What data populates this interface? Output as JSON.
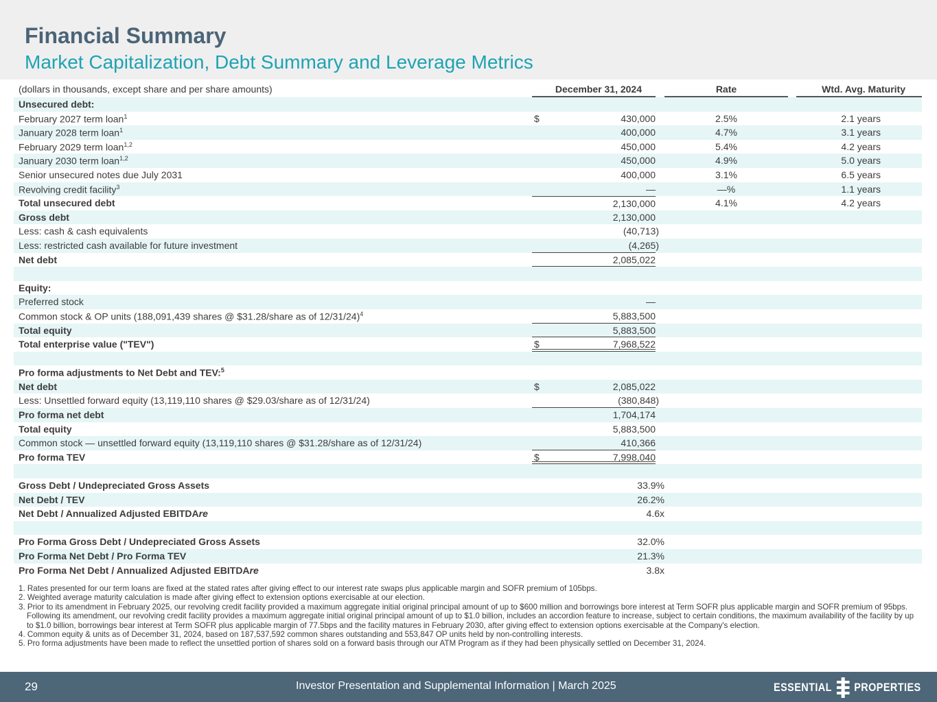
{
  "header": {
    "title": "Financial Summary",
    "subtitle": "Market Capitalization, Debt Summary and Leverage Metrics"
  },
  "table": {
    "columns": [
      "(dollars in thousands, except share and per share amounts)",
      "December 31, 2024",
      "Rate",
      "Wtd. Avg. Maturity"
    ],
    "rows": [
      {
        "label": "Unsecured debt:",
        "bold": true
      },
      {
        "label": "February 2027 term loan",
        "sup": "1",
        "dollar": "$",
        "value": "430,000",
        "rate": "2.5%",
        "maturity": "2.1 years"
      },
      {
        "label": "January 2028 term loan",
        "sup": "1",
        "value": "400,000",
        "rate": "4.7%",
        "maturity": "3.1 years"
      },
      {
        "label": "February 2029 term loan",
        "sup": "1,2",
        "value": "450,000",
        "rate": "5.4%",
        "maturity": "4.2 years"
      },
      {
        "label": "January 2030 term loan",
        "sup": "1,2",
        "value": "450,000",
        "rate": "4.9%",
        "maturity": "5.0 years"
      },
      {
        "label": "Senior unsecured notes due July 2031",
        "value": "400,000",
        "rate": "3.1%",
        "maturity": "6.5 years"
      },
      {
        "label": "Revolving credit facility",
        "sup": "3",
        "value": "—",
        "rate": "—%",
        "maturity": "1.1 years"
      },
      {
        "label": "Total unsecured debt",
        "bold": true,
        "value": "2,130,000",
        "rate": "4.1%",
        "maturity": "4.2 years",
        "line": "tt"
      },
      {
        "label": "Gross debt",
        "bold": true,
        "value": "2,130,000"
      },
      {
        "label": "Less: cash & cash equivalents",
        "value": "(40,713)"
      },
      {
        "label": "Less: restricted cash available for future investment",
        "value": "(4,265)",
        "line": "ul"
      },
      {
        "label": "Net debt",
        "bold": true,
        "value": "2,085,022",
        "line": "ul"
      },
      {
        "label": ""
      },
      {
        "label": "Equity:",
        "bold": true
      },
      {
        "label": "Preferred stock",
        "value": "—"
      },
      {
        "label": "Common stock & OP units (188,091,439 shares @ $31.28/share as of 12/31/24)",
        "sup": "4",
        "value": "5,883,500",
        "line": "ul"
      },
      {
        "label": "Total equity",
        "bold": true,
        "value": "5,883,500",
        "line": "ul"
      },
      {
        "label": "Total enterprise value (\"TEV\")",
        "bold": true,
        "dollar": "$",
        "value": "7,968,522",
        "line": "dbl"
      },
      {
        "label": ""
      },
      {
        "label": "Pro forma adjustments to Net Debt and TEV:",
        "sup": "5",
        "bold": true
      },
      {
        "label": "Net debt",
        "bold": true,
        "dollar": "$",
        "value": "2,085,022"
      },
      {
        "label": "Less: Unsettled forward equity (13,119,110 shares @ $29.03/share as of 12/31/24)",
        "value": "(380,848)",
        "line": "ul"
      },
      {
        "label": "Pro forma net debt",
        "bold": true,
        "value": "1,704,174"
      },
      {
        "label": "Total equity",
        "bold": true,
        "value": "5,883,500"
      },
      {
        "label": "Common stock — unsettled forward equity (13,119,110 shares @ $31.28/share as of 12/31/24)",
        "value": "410,366",
        "line": "ul"
      },
      {
        "label": "Pro forma TEV",
        "bold": true,
        "dollar": "$",
        "value": "7,998,040",
        "line": "dbl"
      },
      {
        "label": ""
      },
      {
        "label": "Gross Debt / Undepreciated Gross Assets",
        "bold": true,
        "ratio": "33.9%"
      },
      {
        "label": "Net Debt / TEV",
        "bold": true,
        "ratio": "26.2%"
      },
      {
        "label": "Net Debt / Annualized Adjusted EBITDAre",
        "bold": true,
        "ratio": "4.6x"
      },
      {
        "label": ""
      },
      {
        "label": "Pro Forma Gross Debt / Undepreciated Gross Assets",
        "bold": true,
        "ratio": "32.0%"
      },
      {
        "label": "Pro Forma Net Debt / Pro Forma TEV",
        "bold": true,
        "ratio": "21.3%"
      },
      {
        "label": "Pro Forma Net Debt / Annualized Adjusted EBITDAre",
        "bold": true,
        "ratio": "3.8x"
      }
    ]
  },
  "footnotes": [
    "1. Rates presented for our term loans are fixed at the stated rates after giving effect to our interest rate swaps plus applicable margin and SOFR premium of 105bps.",
    "2. Weighted average maturity calculation is made after giving effect to extension options exercisable at our election.",
    "3. Prior to its amendment in February 2025, our revolving credit facility provided a maximum aggregate initial original principal amount of up to $600 million and borrowings bore interest at Term SOFR plus applicable margin and SOFR premium of 95bps. Following its amendment, our revolving credit facility provides a maximum aggregate initial original principal amount of up to $1.0 billion, includes an accordion feature to increase, subject to certain conditions, the maximum availability of the facility by up to $1.0 billion, borrowings bear interest at Term SOFR plus applicable margin of 77.5bps and the facility matures in February 2030, after giving effect to extension options exercisable at the Company's election.",
    "4. Common equity & units as of December 31, 2024, based on 187,537,592 common shares outstanding and 553,847 OP units held by non-controlling interests.",
    "5. Pro forma adjustments have been made to reflect the unsettled portion of shares sold on a forward basis through our ATM Program as if they had been physically settled on December 31, 2024."
  ],
  "footer": {
    "page": "29",
    "text": "Investor Presentation and Supplemental Information |  March 2025",
    "logo_left": "ESSENTIAL",
    "logo_right": "PROPERTIES"
  }
}
